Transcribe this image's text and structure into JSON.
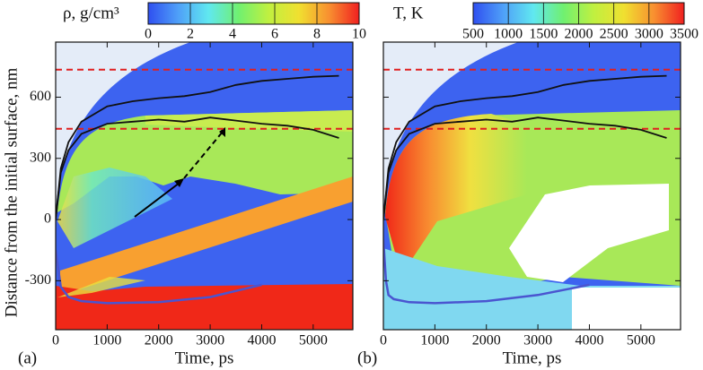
{
  "y_label": "Distance from the initial surface, nm",
  "chart_data": [
    {
      "type": "contour",
      "panel_label": "(a)",
      "x_label": "Time, ps",
      "colorbar": {
        "label": "ρ, g/cm³",
        "lim": [
          0,
          10
        ],
        "ticks": [
          0,
          2,
          4,
          6,
          8,
          10
        ],
        "colormap": [
          "#2f4ff0",
          "#4fa0f8",
          "#60e8f0",
          "#70f070",
          "#c0f040",
          "#f0e030",
          "#f89030",
          "#f02020"
        ]
      },
      "xlim": [
        0,
        5770
      ],
      "xticks": [
        0,
        1000,
        2000,
        3000,
        4000,
        5000
      ],
      "ylim": [
        -540,
        870
      ],
      "yticks": [
        -300,
        0,
        300,
        600
      ],
      "hlines": [
        {
          "y": 735,
          "color": "#e02020"
        },
        {
          "y": 445,
          "color": "#e02020"
        }
      ],
      "lines": [
        {
          "color": "#111111",
          "x": [
            0,
            100,
            250,
            500,
            1000,
            1500,
            2000,
            2500,
            3000,
            3500,
            4000,
            4500,
            5000,
            5500
          ],
          "y": [
            0,
            250,
            380,
            480,
            555,
            580,
            595,
            605,
            625,
            660,
            680,
            690,
            700,
            705
          ]
        },
        {
          "color": "#111111",
          "x": [
            0,
            100,
            250,
            500,
            1000,
            1500,
            2000,
            2500,
            3000,
            3500,
            4000,
            4500,
            5000,
            5500
          ],
          "y": [
            0,
            230,
            340,
            420,
            470,
            480,
            490,
            480,
            500,
            485,
            470,
            460,
            440,
            400
          ]
        },
        {
          "color": "#4a55d0",
          "x": [
            0,
            100,
            250,
            500,
            1000,
            2000,
            3000,
            3500,
            4000
          ],
          "y": [
            -150,
            -330,
            -380,
            -400,
            -410,
            -405,
            -380,
            -350,
            -320
          ]
        }
      ]
    },
    {
      "type": "contour",
      "panel_label": "(b)",
      "x_label": "Time, ps",
      "colorbar": {
        "label": "T, K",
        "lim": [
          500,
          3500
        ],
        "ticks": [
          500,
          1000,
          1500,
          2000,
          2500,
          3000,
          3500
        ],
        "colormap": [
          "#2f4ff0",
          "#4fa0f8",
          "#60e8f0",
          "#70f070",
          "#c0f040",
          "#f0e030",
          "#f89030",
          "#f02020"
        ]
      },
      "xlim": [
        0,
        5770
      ],
      "xticks": [
        0,
        1000,
        2000,
        3000,
        4000,
        5000
      ],
      "ylim": [
        -540,
        870
      ],
      "yticks": [
        -300,
        0,
        300,
        600
      ],
      "hlines": [
        {
          "y": 735,
          "color": "#e02020"
        },
        {
          "y": 445,
          "color": "#e02020"
        }
      ],
      "lines": [
        {
          "color": "#111111",
          "x": [
            0,
            100,
            250,
            500,
            1000,
            1500,
            2000,
            2500,
            3000,
            3500,
            4000,
            4500,
            5000,
            5500
          ],
          "y": [
            0,
            250,
            380,
            480,
            555,
            580,
            595,
            605,
            625,
            660,
            680,
            690,
            700,
            705
          ]
        },
        {
          "color": "#111111",
          "x": [
            0,
            100,
            250,
            500,
            1000,
            1500,
            2000,
            2500,
            3000,
            3500,
            4000,
            4500,
            5000,
            5500
          ],
          "y": [
            0,
            230,
            340,
            420,
            470,
            480,
            490,
            480,
            500,
            485,
            470,
            460,
            440,
            400
          ]
        },
        {
          "color": "#4a55d0",
          "x": [
            0,
            50,
            100,
            200,
            500,
            1000,
            2000,
            3000,
            4000
          ],
          "y": [
            -100,
            -300,
            -370,
            -390,
            -405,
            -410,
            -400,
            -370,
            -320
          ]
        }
      ]
    }
  ]
}
